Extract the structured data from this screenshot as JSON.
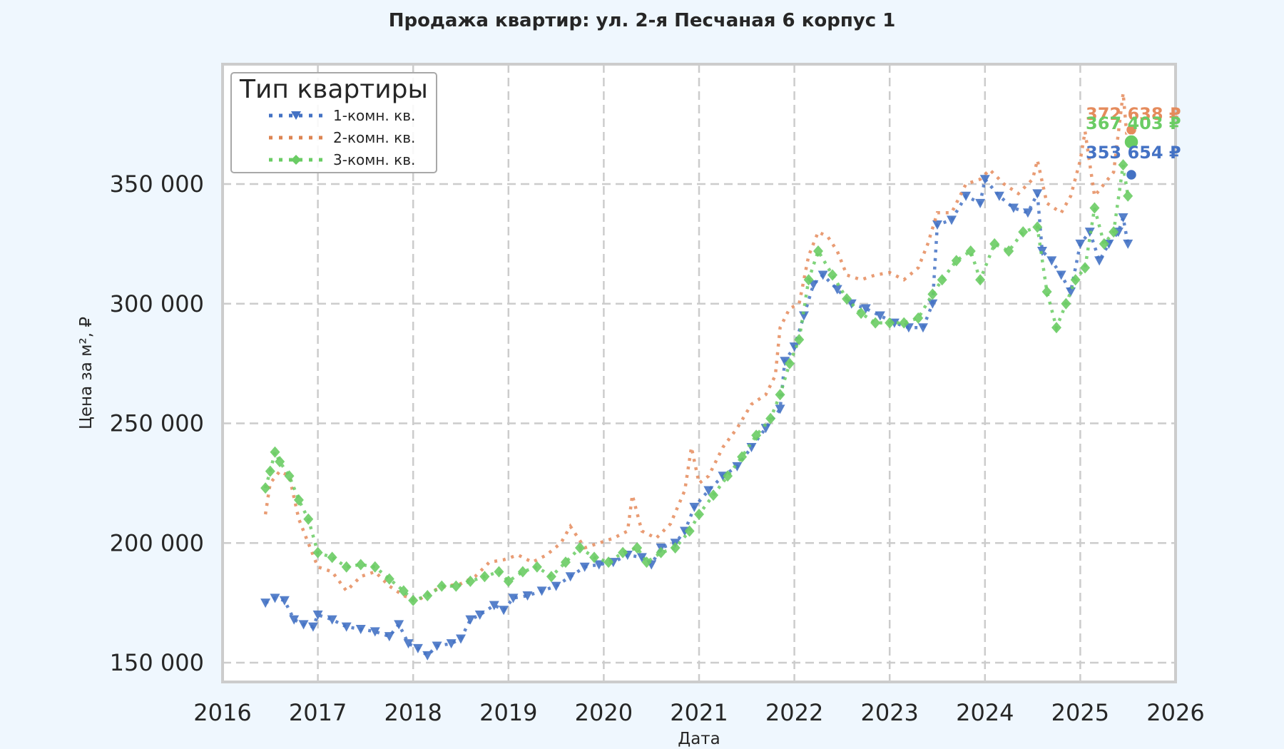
{
  "chart_data": {
    "type": "scatter",
    "title": "Продажа квартир: ул. 2-я Песчаная 6 корпус 1",
    "xlabel": "Дата",
    "ylabel": "Цена за м², ₽",
    "xlim": [
      2016,
      2026
    ],
    "ylim": [
      142000,
      398000
    ],
    "x_ticks": [
      "2016",
      "2017",
      "2018",
      "2019",
      "2020",
      "2021",
      "2022",
      "2023",
      "2024",
      "2025",
      "2026"
    ],
    "y_ticks": [
      {
        "value": 150000,
        "label": "150 000"
      },
      {
        "value": 200000,
        "label": "200 000"
      },
      {
        "value": 250000,
        "label": "250 000"
      },
      {
        "value": 300000,
        "label": "300 000"
      },
      {
        "value": 350000,
        "label": "350 000"
      }
    ],
    "grid": true,
    "legend": {
      "title": "Тип квартиры",
      "position": "upper left",
      "entries": [
        "1-комн. кв.",
        "2-комн. кв.",
        "3-комн. кв."
      ]
    },
    "series": [
      {
        "name": "1-комн. кв.",
        "color": "#4472c4",
        "marker": "triangle-down",
        "points": [
          [
            2016.45,
            175000
          ],
          [
            2016.55,
            177000
          ],
          [
            2016.65,
            176000
          ],
          [
            2016.75,
            168000
          ],
          [
            2016.85,
            166000
          ],
          [
            2016.95,
            165000
          ],
          [
            2017.0,
            170000
          ],
          [
            2017.15,
            168000
          ],
          [
            2017.3,
            165000
          ],
          [
            2017.45,
            164000
          ],
          [
            2017.6,
            163000
          ],
          [
            2017.75,
            161000
          ],
          [
            2017.85,
            166000
          ],
          [
            2017.95,
            158000
          ],
          [
            2018.05,
            156000
          ],
          [
            2018.15,
            153000
          ],
          [
            2018.25,
            157000
          ],
          [
            2018.4,
            158000
          ],
          [
            2018.5,
            160000
          ],
          [
            2018.6,
            168000
          ],
          [
            2018.7,
            170000
          ],
          [
            2018.85,
            174000
          ],
          [
            2018.95,
            172000
          ],
          [
            2019.05,
            177000
          ],
          [
            2019.2,
            178000
          ],
          [
            2019.35,
            180000
          ],
          [
            2019.5,
            182000
          ],
          [
            2019.65,
            186000
          ],
          [
            2019.8,
            190000
          ],
          [
            2019.95,
            191000
          ],
          [
            2020.1,
            192000
          ],
          [
            2020.25,
            195000
          ],
          [
            2020.4,
            194000
          ],
          [
            2020.5,
            191000
          ],
          [
            2020.6,
            198000
          ],
          [
            2020.75,
            200000
          ],
          [
            2020.85,
            205000
          ],
          [
            2020.95,
            215000
          ],
          [
            2021.1,
            222000
          ],
          [
            2021.25,
            228000
          ],
          [
            2021.4,
            232000
          ],
          [
            2021.55,
            240000
          ],
          [
            2021.7,
            248000
          ],
          [
            2021.85,
            256000
          ],
          [
            2021.9,
            276000
          ],
          [
            2022.0,
            282000
          ],
          [
            2022.1,
            295000
          ],
          [
            2022.2,
            308000
          ],
          [
            2022.3,
            312000
          ],
          [
            2022.45,
            306000
          ],
          [
            2022.6,
            300000
          ],
          [
            2022.75,
            298000
          ],
          [
            2022.9,
            295000
          ],
          [
            2023.05,
            292000
          ],
          [
            2023.2,
            290000
          ],
          [
            2023.35,
            290000
          ],
          [
            2023.45,
            300000
          ],
          [
            2023.5,
            333000
          ],
          [
            2023.65,
            335000
          ],
          [
            2023.8,
            345000
          ],
          [
            2023.95,
            342000
          ],
          [
            2024.0,
            352000
          ],
          [
            2024.15,
            345000
          ],
          [
            2024.3,
            340000
          ],
          [
            2024.45,
            338000
          ],
          [
            2024.55,
            346000
          ],
          [
            2024.6,
            322000
          ],
          [
            2024.7,
            318000
          ],
          [
            2024.8,
            312000
          ],
          [
            2024.9,
            305000
          ],
          [
            2025.0,
            325000
          ],
          [
            2025.1,
            330000
          ],
          [
            2025.2,
            318000
          ],
          [
            2025.3,
            325000
          ],
          [
            2025.4,
            330000
          ],
          [
            2025.45,
            336000
          ],
          [
            2025.5,
            325000
          ]
        ],
        "last_value": 353654,
        "last_label": "353 654 ₽"
      },
      {
        "name": "2-комн. кв.",
        "color": "#dd8452",
        "marker": "square-dot",
        "points": [
          [
            2016.45,
            212000
          ],
          [
            2016.5,
            225000
          ],
          [
            2016.6,
            230000
          ],
          [
            2016.7,
            228000
          ],
          [
            2016.8,
            210000
          ],
          [
            2016.9,
            200000
          ],
          [
            2017.0,
            190000
          ],
          [
            2017.15,
            188000
          ],
          [
            2017.3,
            180000
          ],
          [
            2017.45,
            186000
          ],
          [
            2017.6,
            188000
          ],
          [
            2017.75,
            182000
          ],
          [
            2017.9,
            178000
          ],
          [
            2018.05,
            176000
          ],
          [
            2018.2,
            180000
          ],
          [
            2018.35,
            182000
          ],
          [
            2018.5,
            183000
          ],
          [
            2018.65,
            186000
          ],
          [
            2018.8,
            192000
          ],
          [
            2018.95,
            193000
          ],
          [
            2019.1,
            195000
          ],
          [
            2019.25,
            192000
          ],
          [
            2019.4,
            195000
          ],
          [
            2019.55,
            200000
          ],
          [
            2019.65,
            207000
          ],
          [
            2019.8,
            198000
          ],
          [
            2019.95,
            200000
          ],
          [
            2020.1,
            202000
          ],
          [
            2020.25,
            205000
          ],
          [
            2020.3,
            220000
          ],
          [
            2020.4,
            205000
          ],
          [
            2020.55,
            202000
          ],
          [
            2020.7,
            208000
          ],
          [
            2020.85,
            222000
          ],
          [
            2020.92,
            240000
          ],
          [
            2021.0,
            225000
          ],
          [
            2021.1,
            228000
          ],
          [
            2021.25,
            240000
          ],
          [
            2021.4,
            248000
          ],
          [
            2021.55,
            258000
          ],
          [
            2021.7,
            262000
          ],
          [
            2021.8,
            270000
          ],
          [
            2021.85,
            290000
          ],
          [
            2021.95,
            298000
          ],
          [
            2022.05,
            300000
          ],
          [
            2022.15,
            320000
          ],
          [
            2022.25,
            330000
          ],
          [
            2022.35,
            328000
          ],
          [
            2022.45,
            322000
          ],
          [
            2022.55,
            312000
          ],
          [
            2022.7,
            310000
          ],
          [
            2022.85,
            312000
          ],
          [
            2023.0,
            313000
          ],
          [
            2023.15,
            310000
          ],
          [
            2023.3,
            315000
          ],
          [
            2023.4,
            325000
          ],
          [
            2023.5,
            338000
          ],
          [
            2023.65,
            338000
          ],
          [
            2023.8,
            350000
          ],
          [
            2023.95,
            352000
          ],
          [
            2024.05,
            356000
          ],
          [
            2024.2,
            350000
          ],
          [
            2024.35,
            346000
          ],
          [
            2024.5,
            352000
          ],
          [
            2024.55,
            360000
          ],
          [
            2024.65,
            342000
          ],
          [
            2024.8,
            338000
          ],
          [
            2024.9,
            345000
          ],
          [
            2025.0,
            360000
          ],
          [
            2025.05,
            372000
          ],
          [
            2025.15,
            345000
          ],
          [
            2025.25,
            350000
          ],
          [
            2025.35,
            355000
          ],
          [
            2025.45,
            388000
          ],
          [
            2025.5,
            365000
          ]
        ],
        "last_value": 372638,
        "last_label": "372 638 ₽"
      },
      {
        "name": "3-комн. кв.",
        "color": "#55a868",
        "marker": "diamond",
        "points": [
          [
            2016.45,
            223000
          ],
          [
            2016.5,
            230000
          ],
          [
            2016.55,
            238000
          ],
          [
            2016.6,
            234000
          ],
          [
            2016.7,
            228000
          ],
          [
            2016.8,
            218000
          ],
          [
            2016.9,
            210000
          ],
          [
            2017.0,
            196000
          ],
          [
            2017.15,
            194000
          ],
          [
            2017.3,
            190000
          ],
          [
            2017.45,
            191000
          ],
          [
            2017.6,
            190000
          ],
          [
            2017.75,
            185000
          ],
          [
            2017.9,
            180000
          ],
          [
            2018.0,
            176000
          ],
          [
            2018.15,
            178000
          ],
          [
            2018.3,
            182000
          ],
          [
            2018.45,
            182000
          ],
          [
            2018.6,
            184000
          ],
          [
            2018.75,
            186000
          ],
          [
            2018.9,
            188000
          ],
          [
            2019.0,
            184000
          ],
          [
            2019.15,
            188000
          ],
          [
            2019.3,
            190000
          ],
          [
            2019.45,
            186000
          ],
          [
            2019.6,
            192000
          ],
          [
            2019.75,
            198000
          ],
          [
            2019.9,
            194000
          ],
          [
            2020.05,
            192000
          ],
          [
            2020.2,
            196000
          ],
          [
            2020.35,
            198000
          ],
          [
            2020.45,
            192000
          ],
          [
            2020.6,
            196000
          ],
          [
            2020.75,
            198000
          ],
          [
            2020.9,
            205000
          ],
          [
            2021.0,
            212000
          ],
          [
            2021.15,
            220000
          ],
          [
            2021.3,
            228000
          ],
          [
            2021.45,
            236000
          ],
          [
            2021.6,
            245000
          ],
          [
            2021.75,
            252000
          ],
          [
            2021.85,
            262000
          ],
          [
            2021.95,
            275000
          ],
          [
            2022.05,
            285000
          ],
          [
            2022.15,
            310000
          ],
          [
            2022.25,
            322000
          ],
          [
            2022.4,
            312000
          ],
          [
            2022.55,
            302000
          ],
          [
            2022.7,
            296000
          ],
          [
            2022.85,
            292000
          ],
          [
            2023.0,
            292000
          ],
          [
            2023.15,
            292000
          ],
          [
            2023.3,
            294000
          ],
          [
            2023.45,
            304000
          ],
          [
            2023.55,
            310000
          ],
          [
            2023.7,
            318000
          ],
          [
            2023.85,
            322000
          ],
          [
            2023.95,
            310000
          ],
          [
            2024.1,
            325000
          ],
          [
            2024.25,
            322000
          ],
          [
            2024.4,
            330000
          ],
          [
            2024.55,
            332000
          ],
          [
            2024.65,
            305000
          ],
          [
            2024.75,
            290000
          ],
          [
            2024.85,
            300000
          ],
          [
            2024.95,
            310000
          ],
          [
            2025.05,
            315000
          ],
          [
            2025.15,
            340000
          ],
          [
            2025.25,
            325000
          ],
          [
            2025.35,
            330000
          ],
          [
            2025.45,
            358000
          ],
          [
            2025.5,
            345000
          ]
        ],
        "last_value": 367403,
        "last_label": "367 403 ₽"
      }
    ],
    "annotations": [
      {
        "text": "372 638 ₽",
        "color": "#dd8452",
        "x": 2025.55,
        "y": 372638
      },
      {
        "text": "367 403 ₽",
        "color": "#55a868",
        "x": 2025.55,
        "y": 367403
      },
      {
        "text": "353 654 ₽",
        "color": "#4472c4",
        "x": 2025.55,
        "y": 353654
      }
    ]
  }
}
